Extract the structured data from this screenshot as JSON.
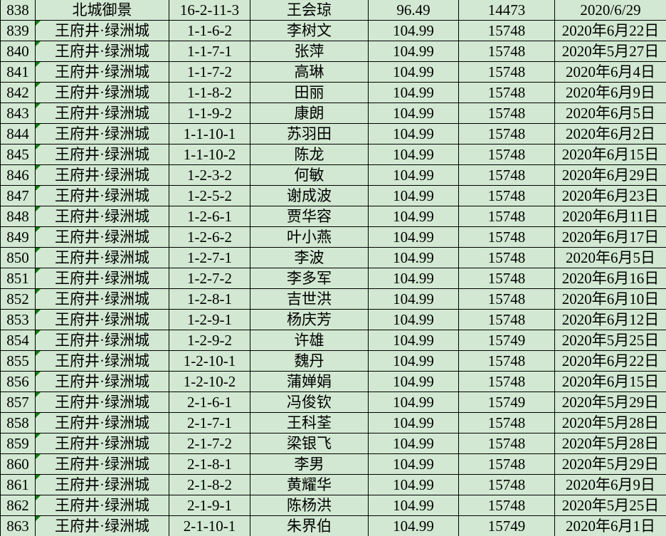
{
  "app": "spreadsheet-grid",
  "colors": {
    "cell_background": "#d2e8d2",
    "grid_line": "#000000",
    "text": "#000000",
    "error_indicator": "#0a7d0a"
  },
  "table": {
    "columns": [
      {
        "key": "n",
        "name": "cell-row-number"
      },
      {
        "key": "property",
        "name": "cell-property-name"
      },
      {
        "key": "unit",
        "name": "cell-unit-number"
      },
      {
        "key": "owner",
        "name": "cell-owner-name"
      },
      {
        "key": "area",
        "name": "cell-area"
      },
      {
        "key": "price",
        "name": "cell-price"
      },
      {
        "key": "date",
        "name": "cell-date"
      }
    ],
    "rows": [
      {
        "n": "838",
        "property": "北城御景",
        "unit": "16-2-11-3",
        "owner": "王会琼",
        "area": "96.49",
        "price": "14473",
        "date": "2020/6/29",
        "indicator": false
      },
      {
        "n": "839",
        "property": "王府井·绿洲城",
        "unit": "1-1-6-2",
        "owner": "李树文",
        "area": "104.99",
        "price": "15748",
        "date": "2020年6月22日",
        "indicator": true
      },
      {
        "n": "840",
        "property": "王府井·绿洲城",
        "unit": "1-1-7-1",
        "owner": "张萍",
        "area": "104.99",
        "price": "15748",
        "date": "2020年5月27日",
        "indicator": true
      },
      {
        "n": "841",
        "property": "王府井·绿洲城",
        "unit": "1-1-7-2",
        "owner": "高琳",
        "area": "104.99",
        "price": "15748",
        "date": "2020年6月4日",
        "indicator": true
      },
      {
        "n": "842",
        "property": "王府井·绿洲城",
        "unit": "1-1-8-2",
        "owner": "田丽",
        "area": "104.99",
        "price": "15748",
        "date": "2020年6月9日",
        "indicator": true
      },
      {
        "n": "843",
        "property": "王府井·绿洲城",
        "unit": "1-1-9-2",
        "owner": "康朗",
        "area": "104.99",
        "price": "15748",
        "date": "2020年6月5日",
        "indicator": true
      },
      {
        "n": "844",
        "property": "王府井·绿洲城",
        "unit": "1-1-10-1",
        "owner": "苏羽田",
        "area": "104.99",
        "price": "15748",
        "date": "2020年6月2日",
        "indicator": true
      },
      {
        "n": "845",
        "property": "王府井·绿洲城",
        "unit": "1-1-10-2",
        "owner": "陈龙",
        "area": "104.99",
        "price": "15748",
        "date": "2020年6月15日",
        "indicator": true
      },
      {
        "n": "846",
        "property": "王府井·绿洲城",
        "unit": "1-2-3-2",
        "owner": "何敏",
        "area": "104.99",
        "price": "15748",
        "date": "2020年6月29日",
        "indicator": true
      },
      {
        "n": "847",
        "property": "王府井·绿洲城",
        "unit": "1-2-5-2",
        "owner": "谢成波",
        "area": "104.99",
        "price": "15748",
        "date": "2020年6月23日",
        "indicator": true
      },
      {
        "n": "848",
        "property": "王府井·绿洲城",
        "unit": "1-2-6-1",
        "owner": "贾华容",
        "area": "104.99",
        "price": "15748",
        "date": "2020年6月11日",
        "indicator": true
      },
      {
        "n": "849",
        "property": "王府井·绿洲城",
        "unit": "1-2-6-2",
        "owner": "叶小燕",
        "area": "104.99",
        "price": "15748",
        "date": "2020年6月17日",
        "indicator": true
      },
      {
        "n": "850",
        "property": "王府井·绿洲城",
        "unit": "1-2-7-1",
        "owner": "李波",
        "area": "104.99",
        "price": "15748",
        "date": "2020年6月5日",
        "indicator": true
      },
      {
        "n": "851",
        "property": "王府井·绿洲城",
        "unit": "1-2-7-2",
        "owner": "李多军",
        "area": "104.99",
        "price": "15748",
        "date": "2020年6月16日",
        "indicator": true
      },
      {
        "n": "852",
        "property": "王府井·绿洲城",
        "unit": "1-2-8-1",
        "owner": "吉世洪",
        "area": "104.99",
        "price": "15748",
        "date": "2020年6月10日",
        "indicator": true
      },
      {
        "n": "853",
        "property": "王府井·绿洲城",
        "unit": "1-2-9-1",
        "owner": "杨庆芳",
        "area": "104.99",
        "price": "15748",
        "date": "2020年6月12日",
        "indicator": true
      },
      {
        "n": "854",
        "property": "王府井·绿洲城",
        "unit": "1-2-9-2",
        "owner": "许雄",
        "area": "104.99",
        "price": "15749",
        "date": "2020年5月25日",
        "indicator": true
      },
      {
        "n": "855",
        "property": "王府井·绿洲城",
        "unit": "1-2-10-1",
        "owner": "魏丹",
        "area": "104.99",
        "price": "15748",
        "date": "2020年6月22日",
        "indicator": true
      },
      {
        "n": "856",
        "property": "王府井·绿洲城",
        "unit": "1-2-10-2",
        "owner": "蒲婵娟",
        "area": "104.99",
        "price": "15748",
        "date": "2020年6月15日",
        "indicator": true
      },
      {
        "n": "857",
        "property": "王府井·绿洲城",
        "unit": "2-1-6-1",
        "owner": "冯俊钦",
        "area": "104.99",
        "price": "15749",
        "date": "2020年5月29日",
        "indicator": true
      },
      {
        "n": "858",
        "property": "王府井·绿洲城",
        "unit": "2-1-7-1",
        "owner": "王科荃",
        "area": "104.99",
        "price": "15748",
        "date": "2020年5月28日",
        "indicator": true
      },
      {
        "n": "859",
        "property": "王府井·绿洲城",
        "unit": "2-1-7-2",
        "owner": "梁银飞",
        "area": "104.99",
        "price": "15748",
        "date": "2020年5月28日",
        "indicator": true
      },
      {
        "n": "860",
        "property": "王府井·绿洲城",
        "unit": "2-1-8-1",
        "owner": "李男",
        "area": "104.99",
        "price": "15748",
        "date": "2020年5月29日",
        "indicator": true
      },
      {
        "n": "861",
        "property": "王府井·绿洲城",
        "unit": "2-1-8-2",
        "owner": "黄耀华",
        "area": "104.99",
        "price": "15748",
        "date": "2020年6月9日",
        "indicator": true
      },
      {
        "n": "862",
        "property": "王府井·绿洲城",
        "unit": "2-1-9-1",
        "owner": "陈杨洪",
        "area": "104.99",
        "price": "15748",
        "date": "2020年5月25日",
        "indicator": true
      },
      {
        "n": "863",
        "property": "王府井·绿洲城",
        "unit": "2-1-10-1",
        "owner": "朱界伯",
        "area": "104.99",
        "price": "15749",
        "date": "2020年6月1日",
        "indicator": true
      }
    ]
  }
}
